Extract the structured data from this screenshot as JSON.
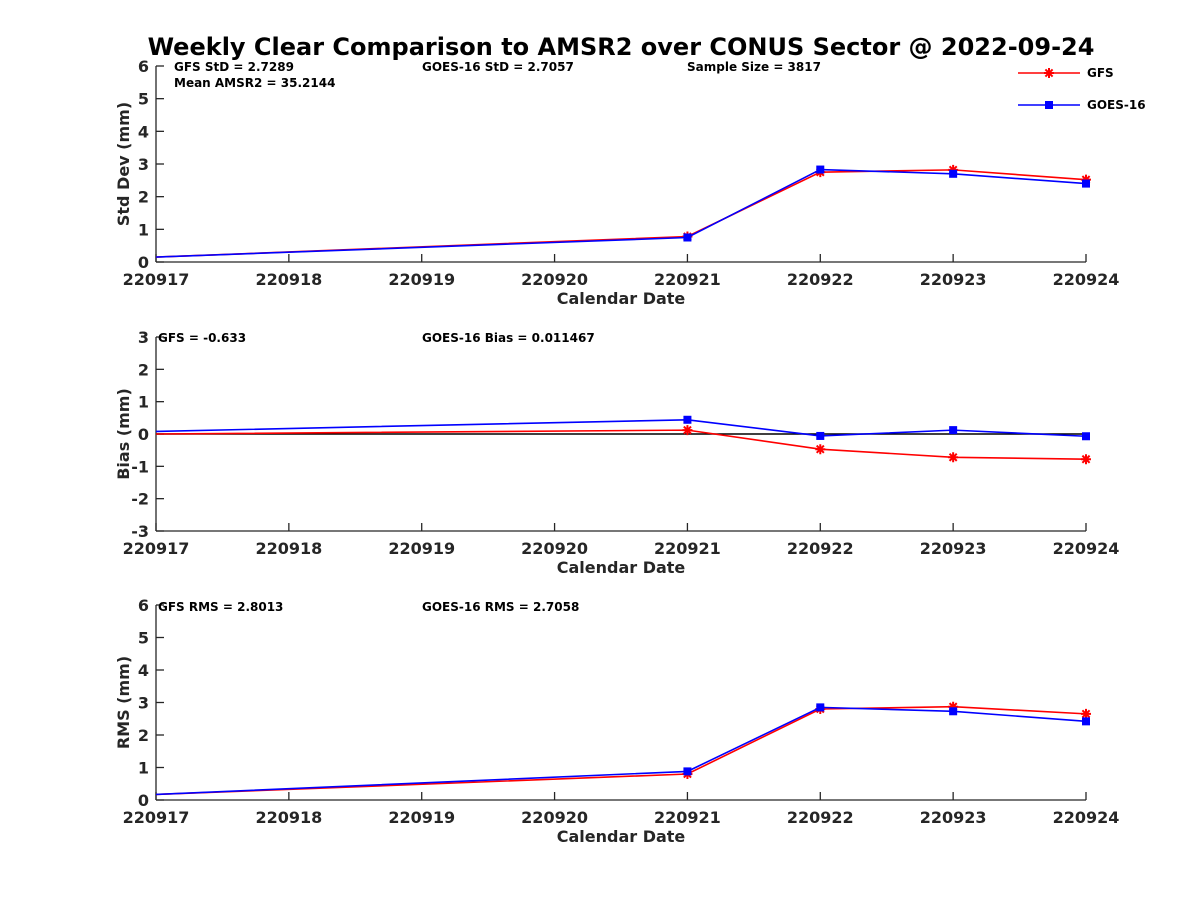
{
  "title": "Weekly Clear Comparison to AMSR2 over CONUS Sector @ 2022-09-24",
  "legend": [
    {
      "name": "GFS",
      "color": "#ff0000",
      "marker": "asterisk"
    },
    {
      "name": "GOES-16",
      "color": "#0000ff",
      "marker": "square"
    }
  ],
  "chart_data": [
    {
      "type": "line",
      "x": [
        "220917",
        "220918",
        "220919",
        "220920",
        "220921",
        "220922",
        "220923",
        "220924"
      ],
      "xlabel": "Calendar Date",
      "ylabel": "Std Dev (mm)",
      "ylim": [
        0,
        6
      ],
      "yticks": [
        "0",
        "1",
        "2",
        "3",
        "4",
        "5",
        "6"
      ],
      "annotations": [
        "GFS StD = 2.7289",
        "GOES-16 StD = 2.7057",
        "Sample Size = 3817",
        "Mean AMSR2 = 35.2144"
      ],
      "series": [
        {
          "name": "GFS",
          "color": "#ff0000",
          "marker": "asterisk",
          "points": [
            [
              "220917",
              0.15
            ],
            [
              "220921",
              0.78
            ],
            [
              "220922",
              2.75
            ],
            [
              "220923",
              2.82
            ],
            [
              "220924",
              2.52
            ]
          ]
        },
        {
          "name": "GOES-16",
          "color": "#0000ff",
          "marker": "square",
          "points": [
            [
              "220917",
              0.15
            ],
            [
              "220921",
              0.75
            ],
            [
              "220922",
              2.83
            ],
            [
              "220923",
              2.7
            ],
            [
              "220924",
              2.4
            ]
          ]
        }
      ]
    },
    {
      "type": "line",
      "x": [
        "220917",
        "220918",
        "220919",
        "220920",
        "220921",
        "220922",
        "220923",
        "220924"
      ],
      "xlabel": "Calendar Date",
      "ylabel": "Bias (mm)",
      "ylim": [
        -3,
        3
      ],
      "yticks": [
        "-3",
        "-2",
        "-1",
        "0",
        "1",
        "2",
        "3"
      ],
      "zero_line": true,
      "annotations": [
        "GFS = -0.633",
        "GOES-16 Bias  = 0.011467"
      ],
      "series": [
        {
          "name": "GFS",
          "color": "#ff0000",
          "marker": "asterisk",
          "points": [
            [
              "220917",
              0.0
            ],
            [
              "220921",
              0.12
            ],
            [
              "220922",
              -0.47
            ],
            [
              "220923",
              -0.72
            ],
            [
              "220924",
              -0.78
            ]
          ]
        },
        {
          "name": "GOES-16",
          "color": "#0000ff",
          "marker": "square",
          "points": [
            [
              "220917",
              0.08
            ],
            [
              "220921",
              0.44
            ],
            [
              "220922",
              -0.06
            ],
            [
              "220923",
              0.12
            ],
            [
              "220924",
              -0.07
            ]
          ]
        }
      ]
    },
    {
      "type": "line",
      "x": [
        "220917",
        "220918",
        "220919",
        "220920",
        "220921",
        "220922",
        "220923",
        "220924"
      ],
      "xlabel": "Calendar Date",
      "ylabel": "RMS (mm)",
      "ylim": [
        0,
        6
      ],
      "yticks": [
        "0",
        "1",
        "2",
        "3",
        "4",
        "5",
        "6"
      ],
      "annotations": [
        "GFS RMS = 2.8013",
        "GOES-16 RMS = 2.7058"
      ],
      "series": [
        {
          "name": "GFS",
          "color": "#ff0000",
          "marker": "asterisk",
          "points": [
            [
              "220917",
              0.17
            ],
            [
              "220921",
              0.8
            ],
            [
              "220922",
              2.8
            ],
            [
              "220923",
              2.87
            ],
            [
              "220924",
              2.65
            ]
          ]
        },
        {
          "name": "GOES-16",
          "color": "#0000ff",
          "marker": "square",
          "points": [
            [
              "220917",
              0.17
            ],
            [
              "220921",
              0.88
            ],
            [
              "220922",
              2.85
            ],
            [
              "220923",
              2.73
            ],
            [
              "220924",
              2.42
            ]
          ]
        }
      ]
    }
  ]
}
